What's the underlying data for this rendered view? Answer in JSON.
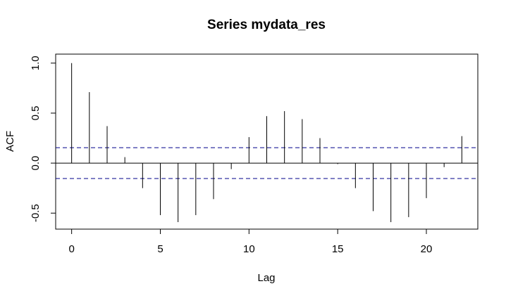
{
  "chart_data": {
    "type": "bar",
    "title": "Series  mydata_res",
    "xlabel": "Lag",
    "ylabel": "ACF",
    "xlim": [
      -0.9,
      22.9
    ],
    "ylim": [
      -0.66,
      1.09
    ],
    "x_ticks": [
      0,
      5,
      10,
      15,
      20
    ],
    "y_ticks": [
      -0.5,
      0.0,
      0.5,
      1.0
    ],
    "x_tick_labels": [
      "0",
      "5",
      "10",
      "15",
      "20"
    ],
    "y_tick_labels": [
      "-0.5",
      "0.0",
      "0.5",
      "1.0"
    ],
    "lags": [
      0,
      1,
      2,
      3,
      4,
      5,
      6,
      7,
      8,
      9,
      10,
      11,
      12,
      13,
      14,
      15,
      16,
      17,
      18,
      19,
      20,
      21,
      22
    ],
    "values": [
      1.0,
      0.71,
      0.37,
      0.06,
      -0.25,
      -0.52,
      -0.59,
      -0.52,
      -0.36,
      -0.06,
      0.26,
      0.47,
      0.52,
      0.44,
      0.25,
      -0.01,
      -0.25,
      -0.48,
      -0.59,
      -0.54,
      -0.35,
      -0.04,
      0.27
    ],
    "confidence_bound": 0.154,
    "colors": {
      "spike": "#000000",
      "zero_line": "#000000",
      "confidence_line": "#00008b",
      "frame": "#000000"
    }
  }
}
